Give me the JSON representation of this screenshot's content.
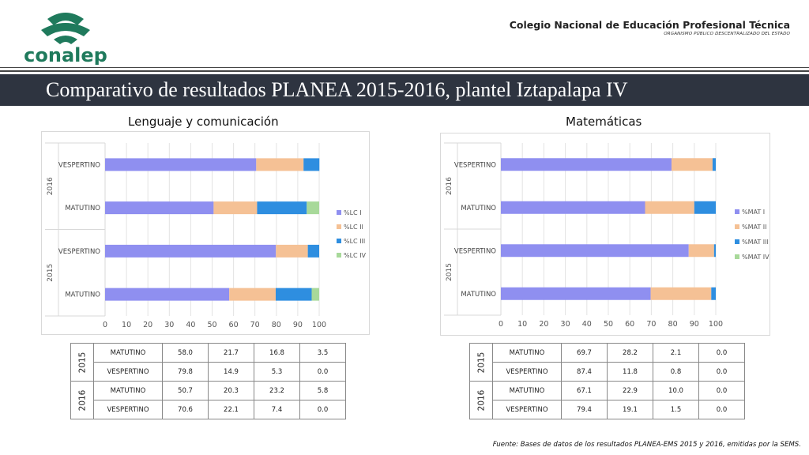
{
  "header": {
    "logo_text": "conalep",
    "org_name": "Colegio Nacional de Educación Profesional Técnica",
    "org_subtitle": "ORGANISMO PÚBLICO DESCENTRALIZADO DEL ESTADO",
    "title": "Comparativo de resultados PLANEA 2015-2016, plantel Iztapalapa IV"
  },
  "colors": {
    "level1": "#8f8ff0",
    "level2": "#f5c195",
    "level3": "#2e8ee0",
    "level4": "#a8d99a",
    "banner": "#2e3440",
    "logo": "#1f7a5c"
  },
  "chart_data": [
    {
      "type": "bar",
      "orientation": "horizontal",
      "stacked": true,
      "title": "Lenguaje y comunicación",
      "groups": [
        {
          "name": "2016",
          "categories": [
            "VESPERTINO",
            "MATUTINO"
          ]
        },
        {
          "name": "2015",
          "categories": [
            "VESPERTINO",
            "MATUTINO"
          ]
        }
      ],
      "series": [
        {
          "name": "%LC I",
          "values": [
            70.6,
            50.7,
            79.8,
            58.0
          ]
        },
        {
          "name": "%LC II",
          "values": [
            22.1,
            20.3,
            14.9,
            21.7
          ]
        },
        {
          "name": "%LC III",
          "values": [
            7.4,
            23.2,
            5.3,
            16.8
          ]
        },
        {
          "name": "%LC IV",
          "values": [
            0.0,
            5.8,
            0.0,
            3.5
          ]
        }
      ],
      "xlim": [
        0,
        100
      ],
      "xticks": [
        "0",
        "10",
        "20",
        "30",
        "40",
        "50",
        "60",
        "70",
        "80",
        "90",
        "100"
      ],
      "grid": true,
      "legend": "right"
    },
    {
      "type": "bar",
      "orientation": "horizontal",
      "stacked": true,
      "title": "Matemáticas",
      "groups": [
        {
          "name": "2016",
          "categories": [
            "VESPERTINO",
            "MATUTINO"
          ]
        },
        {
          "name": "2015",
          "categories": [
            "VESPERTINO",
            "MATUTINO"
          ]
        }
      ],
      "series": [
        {
          "name": "%MAT I",
          "values": [
            79.4,
            67.1,
            87.4,
            69.7
          ]
        },
        {
          "name": "%MAT II",
          "values": [
            19.1,
            22.9,
            11.8,
            28.2
          ]
        },
        {
          "name": "%MAT III",
          "values": [
            1.5,
            10.0,
            0.8,
            2.1
          ]
        },
        {
          "name": "%MAT IV",
          "values": [
            0.0,
            0.0,
            0.0,
            0.0
          ]
        }
      ],
      "xlim": [
        0,
        100
      ],
      "xticks": [
        "0",
        "10",
        "20",
        "30",
        "40",
        "50",
        "60",
        "70",
        "80",
        "90",
        "100"
      ],
      "grid": true,
      "legend": "right"
    }
  ],
  "tables": [
    {
      "rows": [
        {
          "year": "2015",
          "turn": "MATUTINO",
          "values": [
            "58.0",
            "21.7",
            "16.8",
            "3.5"
          ]
        },
        {
          "year": "2015",
          "turn": "VESPERTINO",
          "values": [
            "79.8",
            "14.9",
            "5.3",
            "0.0"
          ]
        },
        {
          "year": "2016",
          "turn": "MATUTINO",
          "values": [
            "50.7",
            "20.3",
            "23.2",
            "5.8"
          ]
        },
        {
          "year": "2016",
          "turn": "VESPERTINO",
          "values": [
            "70.6",
            "22.1",
            "7.4",
            "0.0"
          ]
        }
      ]
    },
    {
      "rows": [
        {
          "year": "2015",
          "turn": "MATUTINO",
          "values": [
            "69.7",
            "28.2",
            "2.1",
            "0.0"
          ]
        },
        {
          "year": "2015",
          "turn": "VESPERTINO",
          "values": [
            "87.4",
            "11.8",
            "0.8",
            "0.0"
          ]
        },
        {
          "year": "2016",
          "turn": "MATUTINO",
          "values": [
            "67.1",
            "22.9",
            "10.0",
            "0.0"
          ]
        },
        {
          "year": "2016",
          "turn": "VESPERTINO",
          "values": [
            "79.4",
            "19.1",
            "1.5",
            "0.0"
          ]
        }
      ]
    }
  ],
  "footer": {
    "source": "Fuente: Bases de datos de los resultados PLANEA-EMS 2015 y 2016, emitidas por la SEMS."
  }
}
